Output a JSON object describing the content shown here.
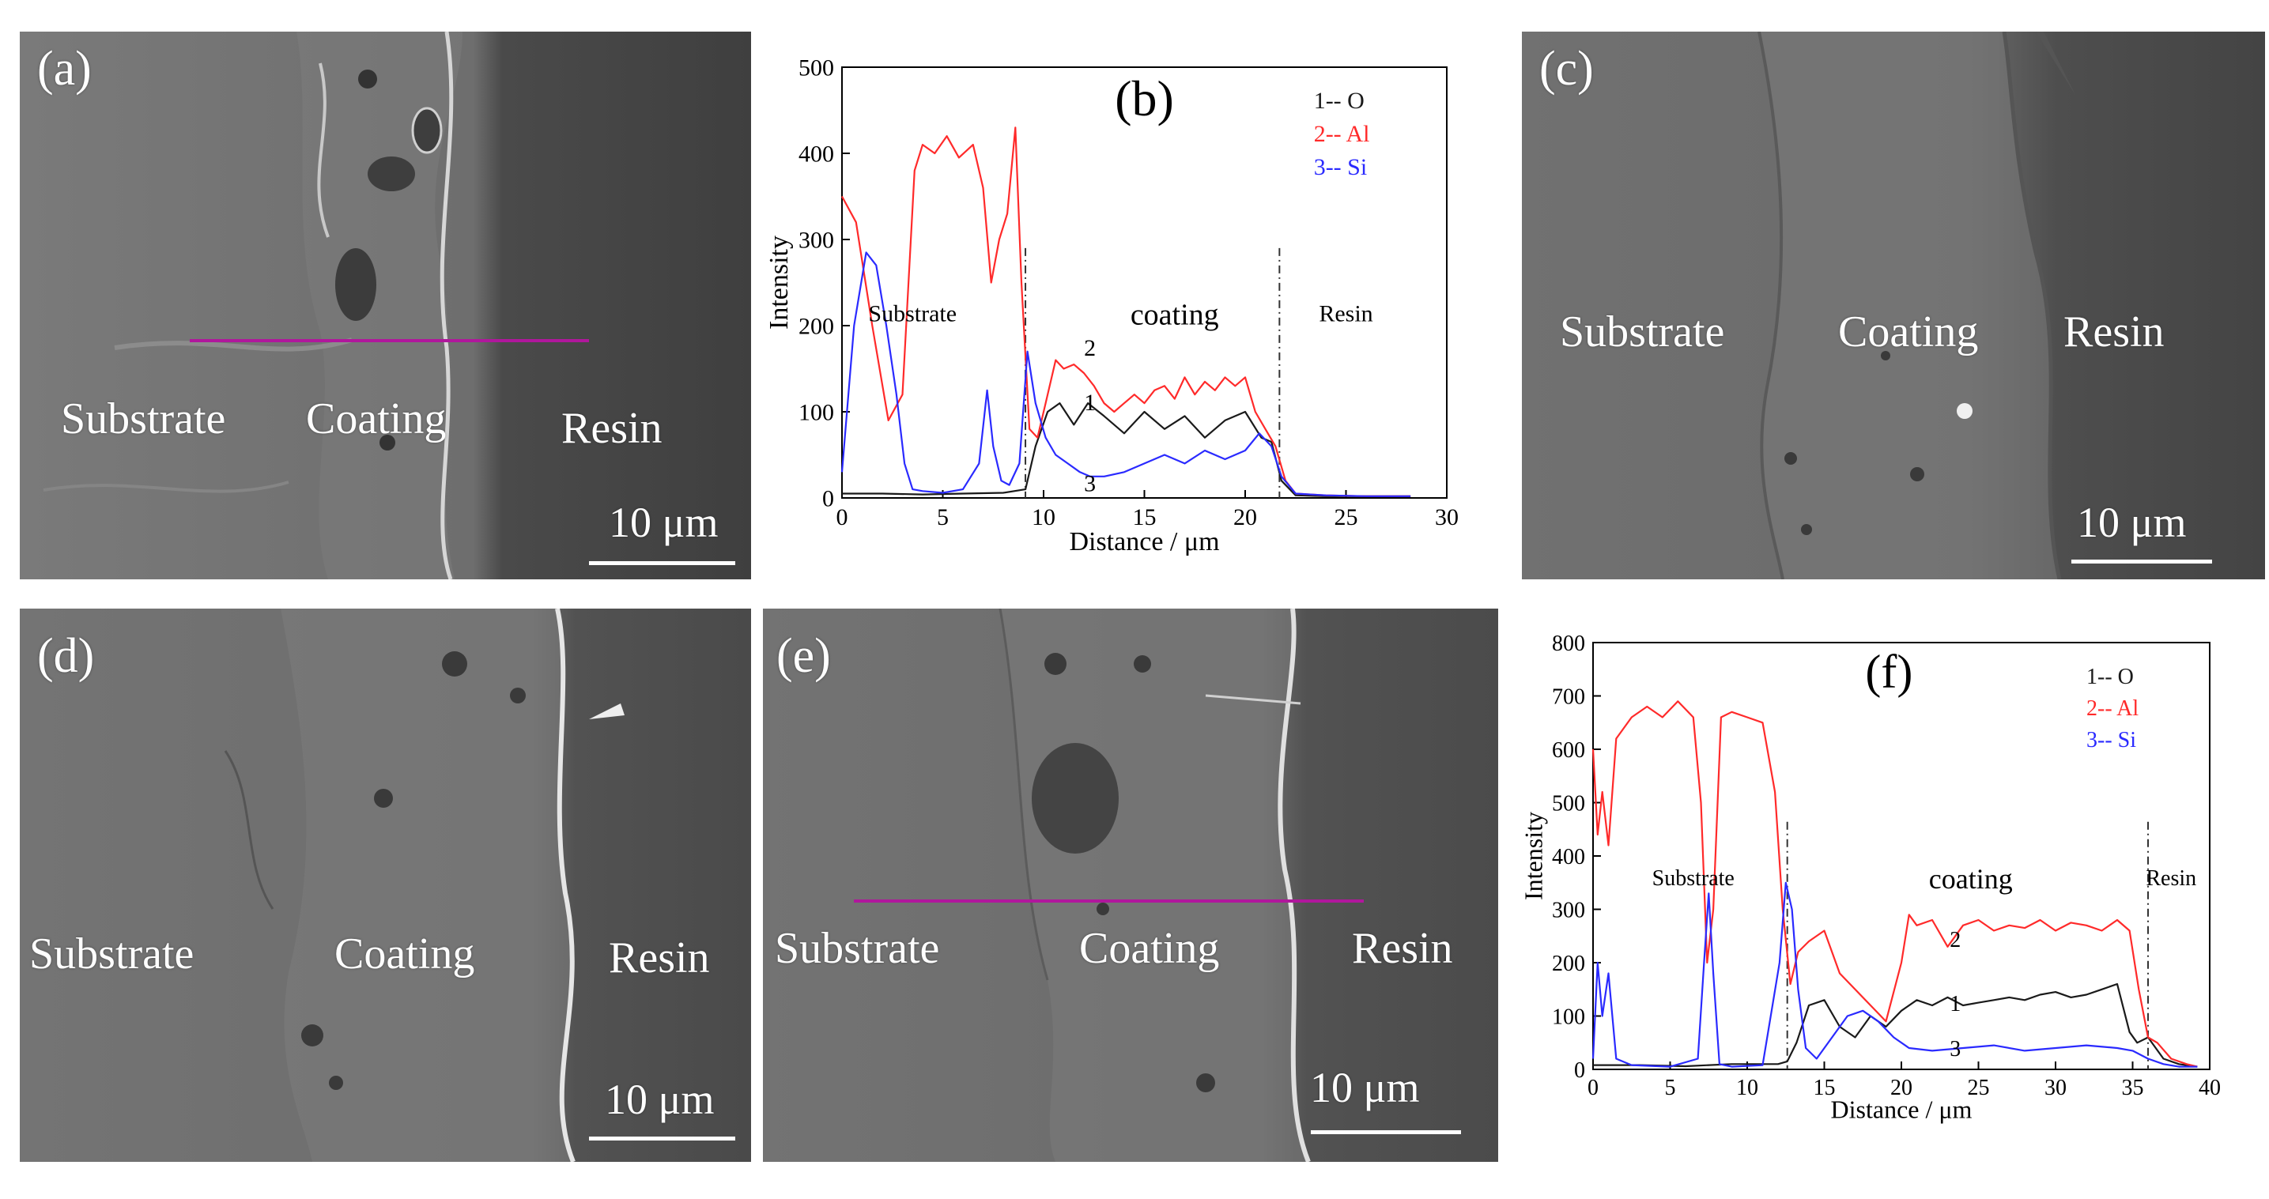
{
  "colors": {
    "O": "#1a1a1a",
    "Al": "#ff2a2a",
    "Si": "#2a2aff",
    "line_scan": "#b0179c",
    "sem_bg": "#6a6a6a"
  },
  "panels": {
    "a": {
      "letter": "(a)",
      "regions": [
        "Substrate",
        "Coating",
        "Resin"
      ],
      "scale": "10 μm"
    },
    "c": {
      "letter": "(c)",
      "regions": [
        "Substrate",
        "Coating",
        "Resin"
      ],
      "scale": "10 μm"
    },
    "d": {
      "letter": "(d)",
      "regions": [
        "Substrate",
        "Coating",
        "Resin"
      ],
      "scale": "10 μm"
    },
    "e": {
      "letter": "(e)",
      "regions": [
        "Substrate",
        "Coating",
        "Resin"
      ],
      "scale": "10 μm"
    }
  },
  "chart_data": [
    {
      "id": "b",
      "type": "line",
      "panel_label": "(b)",
      "xlabel": "Distance / μm",
      "ylabel": "Intensity",
      "xlim": [
        0,
        30
      ],
      "ylim": [
        0,
        500
      ],
      "xticks": [
        0,
        5,
        10,
        15,
        20,
        25,
        30
      ],
      "yticks": [
        0,
        100,
        200,
        300,
        400,
        500
      ],
      "legend": [
        "1-- O",
        "2-- Al",
        "3-- Si"
      ],
      "legend_position": "top-right",
      "region_labels": {
        "substrate": "Substrate",
        "coating": "coating",
        "resin": "Resin"
      },
      "region_label_x": {
        "substrate": 3.5,
        "coating": 16.5,
        "resin": 25
      },
      "region_label_y": 205,
      "boundaries": [
        9.1,
        21.7
      ],
      "curve_labels": [
        {
          "text": "1",
          "x": 12.3,
          "y": 102
        },
        {
          "text": "2",
          "x": 12.3,
          "y": 165
        },
        {
          "text": "3",
          "x": 12.3,
          "y": 8
        }
      ],
      "series": [
        {
          "name": "O",
          "label": "1",
          "x": [
            0,
            2,
            4,
            6,
            8,
            9.1,
            9.6,
            10.2,
            10.8,
            11.5,
            12.2,
            13,
            14,
            15,
            16,
            17,
            18,
            19,
            20,
            20.8,
            21.3,
            21.8,
            22.5,
            24,
            26,
            28.2
          ],
          "y": [
            5,
            5,
            4,
            5,
            6,
            10,
            60,
            100,
            110,
            85,
            110,
            95,
            75,
            100,
            80,
            95,
            70,
            90,
            100,
            70,
            65,
            20,
            3,
            2,
            2,
            2
          ]
        },
        {
          "name": "Al",
          "label": "2",
          "x": [
            0,
            0.7,
            1.5,
            2.3,
            3.0,
            3.6,
            4.0,
            4.6,
            5.2,
            5.8,
            6.5,
            7.0,
            7.4,
            7.8,
            8.2,
            8.6,
            8.9,
            9.3,
            9.7,
            10.1,
            10.6,
            11.0,
            11.5,
            12.0,
            12.5,
            13.0,
            13.5,
            14,
            14.5,
            15,
            15.5,
            16,
            16.5,
            17,
            17.5,
            18,
            18.5,
            19,
            19.5,
            20,
            20.5,
            21,
            21.5,
            22,
            22.5,
            24,
            26,
            28.2
          ],
          "y": [
            350,
            320,
            200,
            90,
            120,
            380,
            410,
            400,
            420,
            395,
            410,
            360,
            250,
            300,
            330,
            430,
            250,
            80,
            70,
            110,
            160,
            150,
            155,
            145,
            130,
            110,
            100,
            110,
            120,
            110,
            125,
            130,
            115,
            140,
            120,
            135,
            125,
            140,
            130,
            140,
            100,
            80,
            60,
            20,
            5,
            3,
            2,
            2
          ]
        },
        {
          "name": "Si",
          "label": "3",
          "x": [
            0,
            0.6,
            1.2,
            1.7,
            2.2,
            2.7,
            3.1,
            3.5,
            4,
            5,
            6,
            6.8,
            7.2,
            7.5,
            7.9,
            8.3,
            8.8,
            9.2,
            9.6,
            10.1,
            10.6,
            11.2,
            11.8,
            12.3,
            13,
            14,
            15,
            16,
            17,
            18,
            19,
            20,
            20.7,
            21.3,
            21.8,
            22.5,
            24,
            26,
            28.2
          ],
          "y": [
            30,
            200,
            285,
            270,
            200,
            120,
            40,
            10,
            8,
            6,
            10,
            40,
            125,
            60,
            20,
            15,
            40,
            170,
            110,
            70,
            50,
            40,
            30,
            25,
            25,
            30,
            40,
            50,
            40,
            55,
            45,
            55,
            75,
            60,
            25,
            5,
            3,
            2,
            2
          ]
        }
      ]
    },
    {
      "id": "f",
      "type": "line",
      "panel_label": "(f)",
      "xlabel": "Distance / μm",
      "ylabel": "Intensity",
      "xlim": [
        0,
        40
      ],
      "ylim": [
        0,
        800
      ],
      "xticks": [
        0,
        5,
        10,
        15,
        20,
        25,
        30,
        35,
        40
      ],
      "yticks": [
        0,
        100,
        200,
        300,
        400,
        500,
        600,
        700,
        800
      ],
      "legend": [
        "1-- O",
        "2-- Al",
        "3-- Si"
      ],
      "legend_position": "top-right",
      "region_labels": {
        "substrate": "Substrate",
        "coating": "coating",
        "resin": "Resin"
      },
      "region_label_x": {
        "substrate": 6.5,
        "coating": 24.5,
        "resin": 37.5
      },
      "region_label_y": 345,
      "boundaries": [
        12.6,
        36.0
      ],
      "curve_labels": [
        {
          "text": "1",
          "x": 23.5,
          "y": 110
        },
        {
          "text": "2",
          "x": 23.5,
          "y": 230
        },
        {
          "text": "3",
          "x": 23.5,
          "y": 25
        }
      ],
      "series": [
        {
          "name": "O",
          "label": "1",
          "x": [
            0,
            3,
            6,
            9,
            12,
            12.6,
            13.2,
            14,
            15,
            16,
            17,
            18,
            19,
            20,
            21,
            22,
            23,
            24,
            25,
            26,
            27,
            28,
            29,
            30,
            31,
            32,
            33,
            34,
            34.8,
            35.3,
            36,
            37,
            38,
            39.2
          ],
          "y": [
            8,
            8,
            6,
            10,
            10,
            15,
            50,
            120,
            130,
            80,
            60,
            100,
            80,
            110,
            130,
            120,
            135,
            120,
            125,
            130,
            135,
            130,
            140,
            145,
            135,
            140,
            150,
            160,
            70,
            50,
            60,
            20,
            10,
            5
          ]
        },
        {
          "name": "Al",
          "label": "2",
          "x": [
            0,
            0.3,
            0.6,
            1.0,
            1.5,
            2.5,
            3.5,
            4.5,
            5.5,
            6.5,
            7.0,
            7.4,
            7.8,
            8.3,
            9,
            10,
            11,
            11.8,
            12.3,
            12.8,
            13.3,
            14,
            15,
            16,
            17,
            18,
            19,
            20,
            20.5,
            21,
            22,
            23,
            24,
            25,
            26,
            27,
            28,
            29,
            30,
            31,
            32,
            33,
            34,
            34.8,
            35.4,
            36,
            36.6,
            37.5,
            38.5,
            39.2
          ],
          "y": [
            600,
            440,
            520,
            420,
            620,
            660,
            680,
            660,
            690,
            660,
            500,
            200,
            300,
            660,
            670,
            660,
            650,
            520,
            300,
            160,
            220,
            240,
            260,
            180,
            150,
            120,
            90,
            200,
            290,
            270,
            280,
            230,
            270,
            280,
            260,
            270,
            265,
            280,
            260,
            275,
            270,
            260,
            280,
            260,
            150,
            60,
            50,
            20,
            10,
            5
          ]
        },
        {
          "name": "Si",
          "label": "3",
          "x": [
            0,
            0.3,
            0.6,
            1.0,
            1.5,
            2.5,
            5,
            6.8,
            7.2,
            7.5,
            7.8,
            8.2,
            9,
            11,
            12.1,
            12.5,
            12.9,
            13.3,
            13.8,
            14.5,
            15.5,
            16.5,
            17.5,
            18.5,
            19.5,
            20.5,
            22,
            24,
            26,
            28,
            30,
            32,
            34,
            35,
            36,
            37,
            38,
            39.2
          ],
          "y": [
            20,
            200,
            100,
            180,
            20,
            8,
            5,
            20,
            200,
            330,
            180,
            10,
            5,
            8,
            200,
            350,
            300,
            150,
            40,
            20,
            60,
            100,
            110,
            90,
            60,
            40,
            35,
            40,
            45,
            35,
            40,
            45,
            40,
            35,
            20,
            10,
            5,
            5
          ]
        }
      ]
    }
  ]
}
